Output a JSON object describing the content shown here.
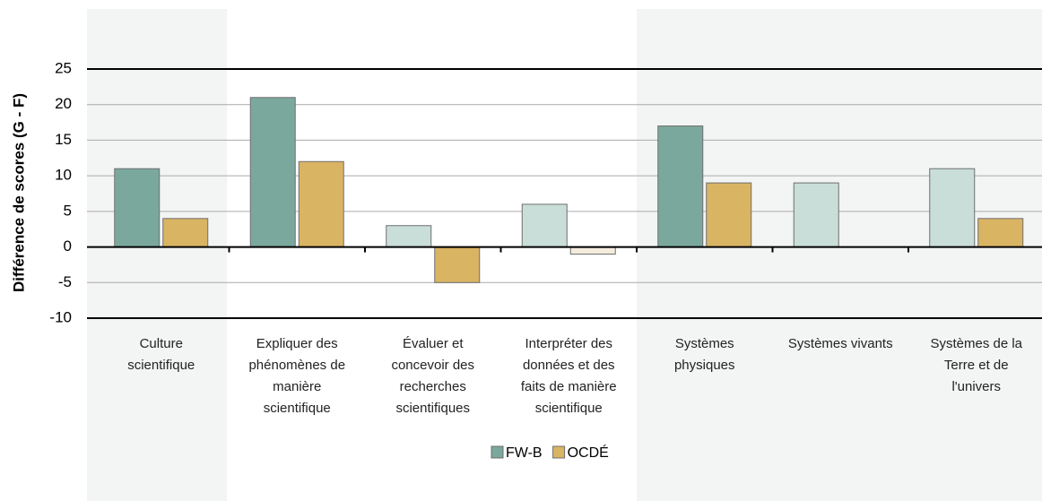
{
  "chart_data": {
    "type": "bar",
    "y_label": "Différence de scores (G - F)",
    "categories": [
      "Culture\nscientifique",
      "Expliquer des\nphénomènes de\nmanière\nscientifique",
      "Évaluer et\nconcevoir des\nrecherches\nscientifiques",
      "Interpréter des\ndonnées et des\nfaits de manière\nscientifique",
      "Systèmes\nphysiques",
      "Systèmes vivants",
      "Systèmes  de la\nTerre et de\nl'univers"
    ],
    "series": [
      {
        "name": "FW-B",
        "color": "#7ba89c",
        "colors": [
          "#7ba89c",
          "#7ba89c",
          "#c9ded8",
          "#c9ded8",
          "#7ba89c",
          "#c9ded8",
          "#c9ded8"
        ],
        "values": [
          11,
          21,
          3,
          6,
          17,
          9,
          11
        ]
      },
      {
        "name": "OCDÉ",
        "color": "#d9b463",
        "colors": [
          "#d9b463",
          "#d9b463",
          "#d9b463",
          "#f3ecdc",
          "#d9b463",
          "#d9b463",
          "#d9b463"
        ],
        "values": [
          4,
          12,
          -5,
          -1,
          9,
          null,
          4
        ]
      }
    ],
    "ylim": [
      -10,
      25
    ],
    "yticks": [
      -10,
      -5,
      0,
      5,
      10,
      15,
      20,
      25
    ],
    "grid": true,
    "legend": "bottom"
  }
}
